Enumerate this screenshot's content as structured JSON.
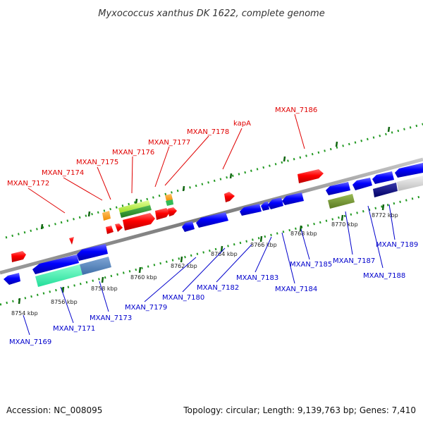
{
  "title": "Myxococcus xanthus DK 1622, complete genome",
  "footer": {
    "accession": "Accession: NC_008095",
    "summary": "Topology: circular; Length: 9,139,763 bp; Genes: 7,410"
  },
  "colors": {
    "forward_gene": "#ff0000",
    "reverse_gene": "#0000ff",
    "backbone": "#8a8a8a",
    "tick": "#229922",
    "top_label": "#e00000",
    "bottom_label": "#0000cc"
  },
  "scale_ticks": [
    "8754 kbp",
    "8756 kbp",
    "8758 kbp",
    "8760 kbp",
    "8762 kbp",
    "8764 kbp",
    "8766 kbp",
    "8768 kbp",
    "8770 kbp",
    "8772 kbp"
  ],
  "top_labels": [
    "MXAN_7172",
    "MXAN_7174",
    "MXAN_7175",
    "MXAN_7176",
    "MXAN_7177",
    "MXAN_7178",
    "kapA",
    "MXAN_7186"
  ],
  "bottom_labels": [
    "MXAN_7169",
    "MXAN_7171",
    "MXAN_7173",
    "MXAN_7179",
    "MXAN_7180",
    "MXAN_7182",
    "MXAN_7183",
    "MXAN_7184",
    "MXAN_7185",
    "MXAN_7187",
    "MXAN_7188",
    "MXAN_7189"
  ]
}
